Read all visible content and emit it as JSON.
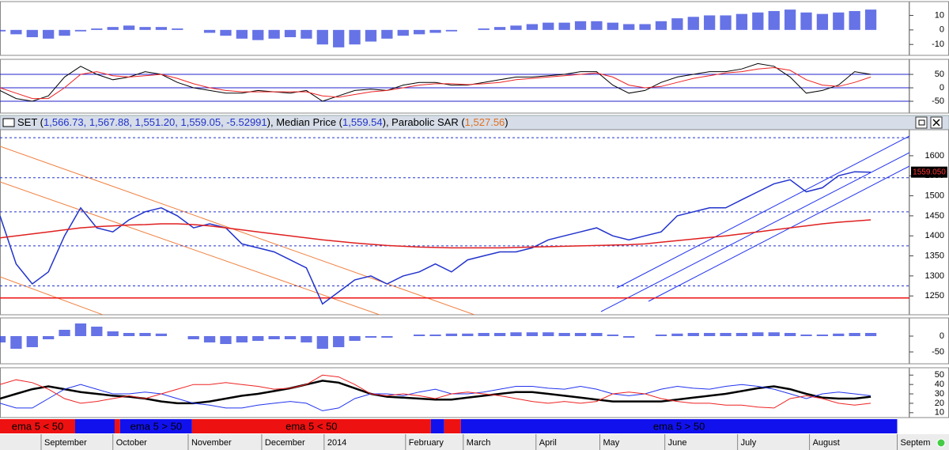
{
  "x": {
    "xlim": [
      0,
      56.4
    ],
    "xticks": [
      {
        "value": 2.55,
        "label": "September"
      },
      {
        "value": 7.0,
        "label": "October"
      },
      {
        "value": 11.67,
        "label": "November"
      },
      {
        "value": 16.23,
        "label": "December"
      },
      {
        "value": 20.1,
        "label": "2014"
      },
      {
        "value": 25.15,
        "label": "February"
      },
      {
        "value": 28.73,
        "label": "March"
      },
      {
        "value": 33.24,
        "label": "April"
      },
      {
        "value": 37.2,
        "label": "May"
      },
      {
        "value": 41.23,
        "label": "June"
      },
      {
        "value": 45.74,
        "label": "July"
      },
      {
        "value": 50.2,
        "label": "August"
      },
      {
        "value": 55.64,
        "label": "Septem"
      }
    ]
  },
  "macd_panel": {
    "ylim": [
      -17.5,
      19.5
    ],
    "yticks": [
      10,
      0,
      -10
    ],
    "color": "#3344dd",
    "values": [
      -1,
      -3,
      -5,
      -6,
      -4,
      -1,
      1,
      2,
      3,
      2,
      2,
      1,
      0,
      -2,
      -4,
      -6,
      -7,
      -6,
      -5,
      -6,
      -10,
      -12,
      -10,
      -8,
      -6,
      -4,
      -3,
      -2,
      -1,
      0,
      1,
      2,
      3,
      4,
      5,
      5,
      6,
      6,
      5,
      4,
      4,
      6,
      8,
      9,
      10,
      10,
      11,
      12,
      13,
      14,
      12,
      11,
      12,
      13,
      14
    ]
  },
  "oscillator_panel": {
    "ylim": [
      -94,
      106
    ],
    "yticks": [
      50,
      0,
      -50
    ],
    "grid_color": "#2222cc",
    "series": [
      {
        "color": "#000000",
        "values": [
          -10,
          -40,
          -50,
          -30,
          40,
          80,
          50,
          30,
          40,
          60,
          50,
          20,
          0,
          -10,
          -20,
          -20,
          -10,
          -15,
          -20,
          -10,
          -50,
          -30,
          -10,
          -5,
          -10,
          10,
          20,
          20,
          10,
          10,
          20,
          30,
          40,
          40,
          45,
          50,
          60,
          60,
          10,
          -20,
          -10,
          20,
          40,
          50,
          60,
          60,
          70,
          90,
          80,
          40,
          -20,
          -10,
          10,
          60,
          50
        ]
      },
      {
        "color": "#ee2222",
        "values": [
          0,
          -20,
          -40,
          -40,
          0,
          50,
          60,
          45,
          40,
          45,
          50,
          35,
          15,
          0,
          -10,
          -15,
          -15,
          -15,
          -15,
          -15,
          -30,
          -35,
          -25,
          -15,
          -10,
          0,
          10,
          15,
          15,
          12,
          15,
          20,
          30,
          35,
          40,
          45,
          50,
          55,
          40,
          10,
          0,
          5,
          20,
          35,
          45,
          55,
          60,
          70,
          75,
          65,
          30,
          10,
          5,
          20,
          40
        ]
      }
    ]
  },
  "price_panel": {
    "header": [
      {
        "text": "SET (",
        "color": "#000000"
      },
      {
        "text": "1,566.73, 1,567.88, 1,551.20, 1,559.05, -5.52991",
        "color": "#2233cc"
      },
      {
        "text": "), Median Price (",
        "color": "#000000"
      },
      {
        "text": "1,559.54",
        "color": "#2233cc"
      },
      {
        "text": "), Parabolic SAR (",
        "color": "#000000"
      },
      {
        "text": "1,527.56",
        "color": "#e07020"
      },
      {
        "text": ")",
        "color": "#000000"
      }
    ],
    "ylim": [
      1203,
      1665
    ],
    "yticks": [
      1250,
      1300,
      1350,
      1400,
      1450,
      1500,
      1550,
      1600
    ],
    "levels": [
      1645,
      1545,
      1460,
      1375,
      1275
    ],
    "support": 1245,
    "last_price_label": "1559.050",
    "series": [
      {
        "color": "#2233cc",
        "values": [
          1450,
          1330,
          1280,
          1310,
          1400,
          1470,
          1420,
          1410,
          1440,
          1460,
          1470,
          1450,
          1420,
          1430,
          1420,
          1380,
          1370,
          1360,
          1340,
          1320,
          1230,
          1260,
          1290,
          1300,
          1280,
          1300,
          1310,
          1330,
          1310,
          1340,
          1350,
          1360,
          1360,
          1370,
          1390,
          1400,
          1410,
          1420,
          1400,
          1390,
          1400,
          1410,
          1450,
          1460,
          1470,
          1470,
          1490,
          1510,
          1530,
          1540,
          1510,
          1520,
          1550,
          1560,
          1559.05
        ]
      },
      {
        "color": "#e02020",
        "values": [
          1395,
          1400,
          1405,
          1410,
          1415,
          1420,
          1423,
          1425,
          1427,
          1428,
          1430,
          1430,
          1428,
          1425,
          1420,
          1415,
          1410,
          1405,
          1400,
          1395,
          1390,
          1386,
          1382,
          1379,
          1376,
          1374,
          1372,
          1371,
          1370,
          1370,
          1370,
          1370,
          1371,
          1372,
          1373,
          1374,
          1375,
          1376,
          1377,
          1378,
          1380,
          1384,
          1388,
          1392,
          1396,
          1400,
          1405,
          1410,
          1415,
          1420,
          1425,
          1430,
          1434,
          1437,
          1440
        ]
      }
    ]
  },
  "histogram_panel": {
    "ylim": [
      -87.5,
      57.5
    ],
    "yticks": [
      0,
      -50
    ],
    "color": "#3344dd",
    "values": [
      -20,
      -40,
      -35,
      -10,
      20,
      40,
      30,
      15,
      10,
      10,
      8,
      0,
      -10,
      -20,
      -25,
      -20,
      -15,
      -10,
      -10,
      -20,
      -40,
      -35,
      -15,
      -5,
      -5,
      0,
      5,
      5,
      8,
      8,
      10,
      10,
      12,
      12,
      12,
      10,
      10,
      10,
      5,
      -5,
      0,
      5,
      8,
      10,
      10,
      10,
      10,
      12,
      12,
      10,
      5,
      5,
      8,
      10,
      10
    ]
  },
  "dmi_panel": {
    "ylim": [
      4.8,
      57.8
    ],
    "yticks": [
      10,
      20,
      30,
      40,
      50
    ],
    "series": [
      {
        "color": "#000000",
        "values": [
          25,
          30,
          35,
          38,
          35,
          32,
          30,
          28,
          27,
          25,
          22,
          20,
          20,
          22,
          25,
          28,
          30,
          33,
          36,
          40,
          44,
          42,
          36,
          30,
          27,
          26,
          25,
          24,
          24,
          26,
          28,
          30,
          32,
          32,
          30,
          28,
          26,
          24,
          22,
          22,
          22,
          22,
          24,
          26,
          28,
          30,
          33,
          36,
          38,
          35,
          30,
          26,
          25,
          25,
          27
        ]
      },
      {
        "color": "#2233ee",
        "values": [
          20,
          15,
          15,
          25,
          35,
          40,
          35,
          30,
          30,
          32,
          30,
          25,
          20,
          18,
          15,
          15,
          18,
          20,
          22,
          20,
          12,
          15,
          25,
          30,
          30,
          28,
          32,
          35,
          30,
          30,
          32,
          35,
          38,
          38,
          36,
          35,
          38,
          35,
          30,
          28,
          30,
          35,
          38,
          36,
          35,
          38,
          40,
          38,
          35,
          30,
          25,
          30,
          32,
          30,
          28
        ]
      },
      {
        "color": "#ee2222",
        "values": [
          40,
          45,
          42,
          35,
          25,
          20,
          22,
          25,
          28,
          25,
          30,
          35,
          40,
          40,
          42,
          40,
          38,
          35,
          36,
          40,
          50,
          48,
          40,
          30,
          28,
          30,
          28,
          25,
          30,
          32,
          30,
          28,
          25,
          22,
          20,
          22,
          20,
          22,
          30,
          32,
          30,
          25,
          22,
          20,
          20,
          18,
          18,
          16,
          15,
          25,
          28,
          25,
          20,
          18,
          20
        ]
      }
    ]
  },
  "signal_bar": {
    "segments": [
      {
        "start": 0,
        "end": 4.66,
        "color": "#ee1111",
        "label": "ema 5 < 50"
      },
      {
        "start": 4.66,
        "end": 7.11,
        "color": "#1111ee"
      },
      {
        "start": 7.11,
        "end": 7.45,
        "color": "#ee1111"
      },
      {
        "start": 7.45,
        "end": 11.91,
        "color": "#1111ee",
        "label": "ema 5 > 50"
      },
      {
        "start": 11.91,
        "end": 26.72,
        "color": "#ee1111",
        "label": "ema 5 < 50"
      },
      {
        "start": 26.72,
        "end": 27.55,
        "color": "#1111ee"
      },
      {
        "start": 27.55,
        "end": 28.58,
        "color": "#ee1111"
      },
      {
        "start": 28.58,
        "end": 55.64,
        "color": "#1111ee",
        "label": "ema 5 > 50"
      }
    ]
  }
}
